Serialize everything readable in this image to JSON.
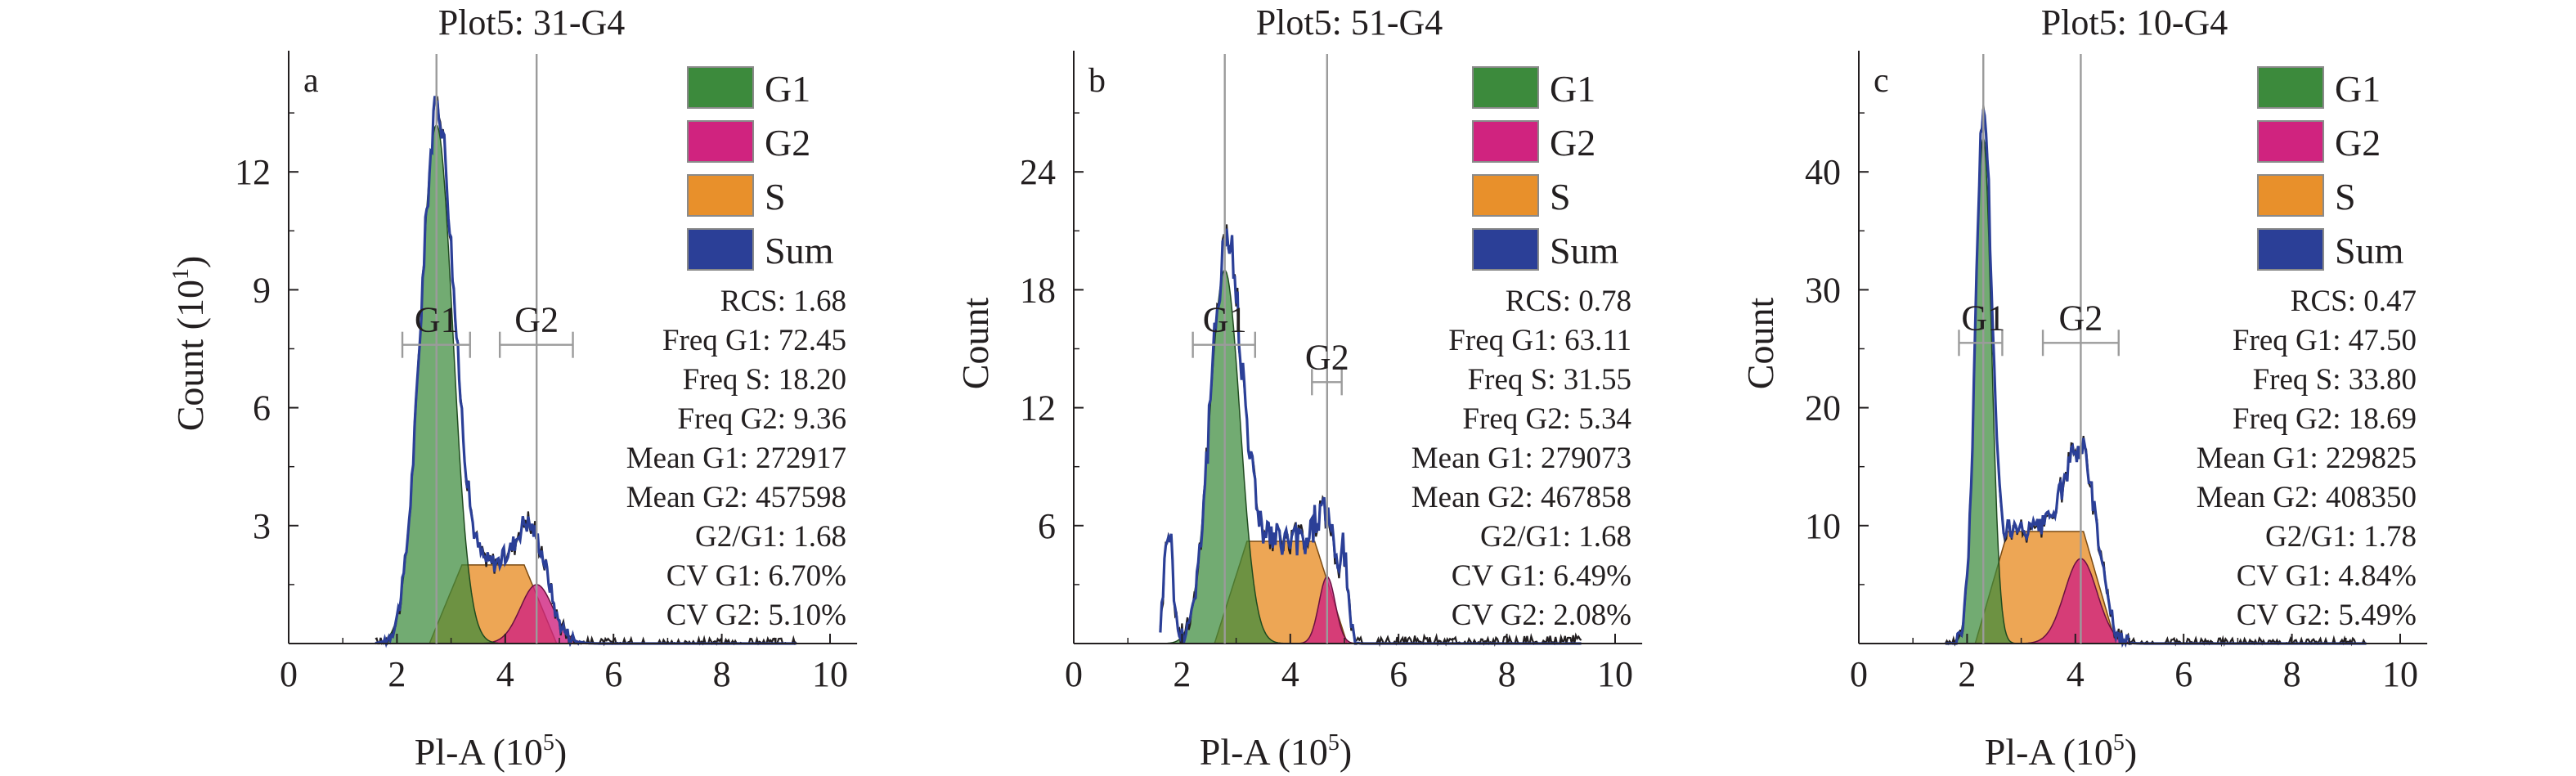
{
  "figure": {
    "colors": {
      "G1": "#3c8a3c",
      "G2": "#d0237f",
      "S": "#e8902b",
      "Sum": "#2b3f97",
      "outline": "#231f20",
      "marker": "#9b9b9b",
      "axis": "#231f20"
    }
  },
  "chart_data": [
    {
      "type": "area",
      "panel_letter": "a",
      "title": "Plot5: 31-G4",
      "xlabel": "Pl-A (10",
      "xlabel_sup": "5",
      "xlabel_end": ")",
      "ylabel": "Count (10",
      "ylabel_sup": "1",
      "ylabel_end": ")",
      "xlim": [
        0,
        10.5
      ],
      "ylim": [
        0,
        15
      ],
      "x_ticks": [
        "0",
        "2",
        "4",
        "6",
        "8",
        "10"
      ],
      "y_ticks": [
        "3",
        "6",
        "9",
        "12"
      ],
      "legend": [
        "G1",
        "G2",
        "S",
        "Sum"
      ],
      "legend_position": "top-right",
      "markers": [
        {
          "label": "G1",
          "x": 2.73,
          "range": [
            2.1,
            3.35
          ],
          "y": 7.6
        },
        {
          "label": "G2",
          "x": 4.58,
          "range": [
            3.9,
            5.25
          ],
          "y": 7.6
        }
      ],
      "stats": [
        "RCS: 1.68",
        "Freq G1: 72.45",
        "Freq S: 18.20",
        "Freq G2: 9.36",
        "Mean G1: 272917",
        "Mean G2: 457598",
        "G2/G1: 1.68",
        "CV G1: 6.70%",
        "CV G2: 5.10%"
      ],
      "series": [
        {
          "name": "G1",
          "peak_x": 2.73,
          "sigma": 0.3,
          "height": 13.2
        },
        {
          "name": "S",
          "start": 2.85,
          "end": 4.7,
          "height": 2.0
        },
        {
          "name": "G2",
          "peak_x": 4.58,
          "sigma": 0.3,
          "height": 1.5
        },
        {
          "name": "Sum",
          "noise": 0.45,
          "extra_x": [],
          "extra_h": []
        }
      ]
    },
    {
      "type": "area",
      "panel_letter": "b",
      "title": "Plot5: 51-G4",
      "xlabel": "Pl-A (10",
      "xlabel_sup": "5",
      "xlabel_end": ")",
      "ylabel": "Count",
      "ylabel_sup": "",
      "ylabel_end": "",
      "xlim": [
        0,
        10.5
      ],
      "ylim": [
        0,
        30
      ],
      "x_ticks": [
        "0",
        "2",
        "4",
        "6",
        "8",
        "10"
      ],
      "y_ticks": [
        "6",
        "12",
        "18",
        "24"
      ],
      "legend": [
        "G1",
        "G2",
        "S",
        "Sum"
      ],
      "legend_position": "top-right",
      "markers": [
        {
          "label": "G1",
          "x": 2.79,
          "range": [
            2.2,
            3.35
          ],
          "y": 15.2
        },
        {
          "label": "G2",
          "x": 4.68,
          "range": [
            4.4,
            4.95
          ],
          "y": 13.3
        }
      ],
      "stats": [
        "RCS: 0.78",
        "Freq G1: 63.11",
        "Freq S: 31.55",
        "Freq G2: 5.34",
        "Mean G1: 279073",
        "Mean G2: 467858",
        "G2/G1: 1.68",
        "CV G1: 6.49%",
        "CV G2: 2.08%"
      ],
      "series": [
        {
          "name": "G1",
          "peak_x": 2.79,
          "sigma": 0.28,
          "height": 19.0
        },
        {
          "name": "S",
          "start": 2.85,
          "end": 4.8,
          "height": 5.2
        },
        {
          "name": "G2",
          "peak_x": 4.68,
          "sigma": 0.15,
          "height": 3.4
        },
        {
          "name": "Sum",
          "noise": 1.4,
          "extra_x": [
            1.75,
            5.0
          ],
          "extra_h": [
            6.0,
            3.8
          ]
        }
      ]
    },
    {
      "type": "area",
      "panel_letter": "c",
      "title": "Plot5: 10-G4",
      "xlabel": "Pl-A (10",
      "xlabel_sup": "5",
      "xlabel_end": ")",
      "ylabel": "Count",
      "ylabel_sup": "",
      "ylabel_end": "",
      "xlim": [
        0,
        10.5
      ],
      "ylim": [
        0,
        50
      ],
      "x_ticks": [
        "0",
        "2",
        "4",
        "6",
        "8",
        "10"
      ],
      "y_ticks": [
        "10",
        "20",
        "30",
        "40"
      ],
      "legend": [
        "G1",
        "G2",
        "S",
        "Sum"
      ],
      "legend_position": "top-right",
      "markers": [
        {
          "label": "G1",
          "x": 2.3,
          "range": [
            1.85,
            2.65
          ],
          "y": 25.5
        },
        {
          "label": "G2",
          "x": 4.1,
          "range": [
            3.4,
            4.8
          ],
          "y": 25.5
        }
      ],
      "stats": [
        "RCS: 0.47",
        "Freq G1: 47.50",
        "Freq S: 33.80",
        "Freq G2: 18.69",
        "Mean G1: 229825",
        "Mean G2: 408350",
        "G2/G1: 1.78",
        "CV G1: 4.84%",
        "CV G2: 5.49%"
      ],
      "series": [
        {
          "name": "G1",
          "peak_x": 2.3,
          "sigma": 0.15,
          "height": 43.0
        },
        {
          "name": "S",
          "start": 2.4,
          "end": 4.5,
          "height": 9.5
        },
        {
          "name": "G2",
          "peak_x": 4.1,
          "sigma": 0.3,
          "height": 7.2
        },
        {
          "name": "Sum",
          "noise": 1.5,
          "extra_x": [],
          "extra_h": []
        }
      ]
    }
  ]
}
